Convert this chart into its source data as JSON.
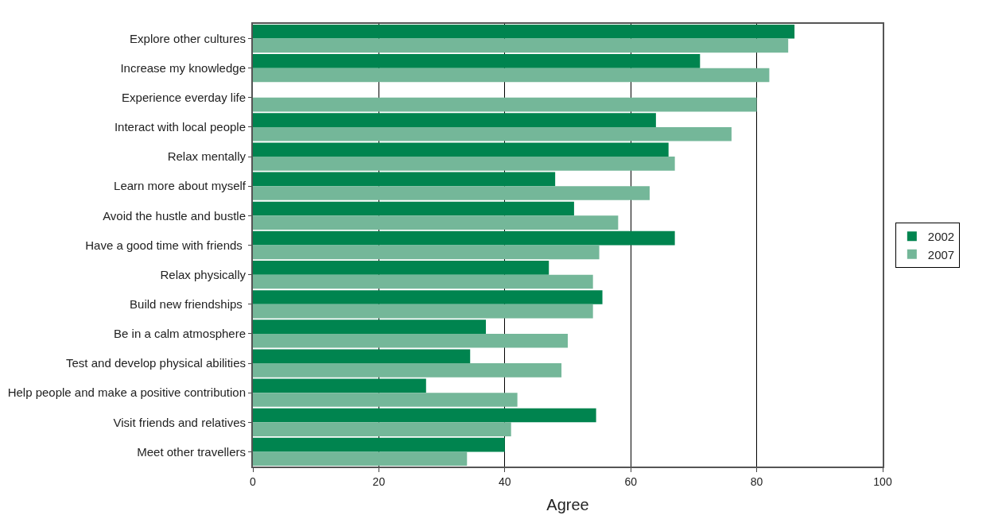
{
  "chart_data": {
    "type": "bar",
    "orientation": "horizontal",
    "xlabel": "Agree",
    "categories": [
      "Explore other cultures",
      "Increase my knowledge",
      "Experience everday life",
      "Interact with local people",
      "Relax mentally",
      "Learn more about myself",
      "Avoid the hustle and bustle",
      "Have a good time with friends ",
      "Relax physically",
      "Build new friendships ",
      "Be in a calm atmosphere",
      "Test and develop physical abilities",
      "Help people and make a positive contribution",
      "Visit friends and relatives",
      "Meet other travellers"
    ],
    "series": [
      {
        "name": "2002",
        "color": "#00844f",
        "values": [
          86,
          71,
          null,
          64,
          66,
          48,
          51,
          67,
          47,
          55.5,
          37,
          34.5,
          27.5,
          54.5,
          40
        ]
      },
      {
        "name": "2007",
        "color": "#74b799",
        "values": [
          85,
          82,
          80,
          76,
          67,
          63,
          58,
          55,
          54,
          54,
          50,
          49,
          42,
          41,
          34
        ]
      }
    ],
    "xlim": [
      0,
      100
    ],
    "xticks": [
      0,
      20,
      40,
      60,
      80,
      100
    ],
    "grid": "x",
    "legend": "right"
  }
}
